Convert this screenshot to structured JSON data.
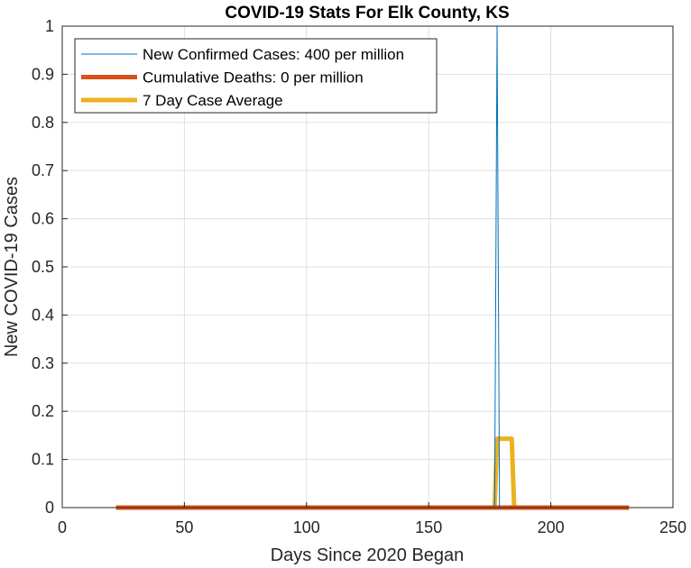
{
  "chart_data": {
    "type": "line",
    "title": "COVID-19 Stats For Elk County, KS",
    "xlabel": "Days Since 2020 Began",
    "ylabel": "New COVID-19 Cases",
    "xlim": [
      0,
      250
    ],
    "ylim": [
      0,
      1
    ],
    "xticks": [
      0,
      50,
      100,
      150,
      200,
      250
    ],
    "yticks": [
      0,
      0.1,
      0.2,
      0.3,
      0.4,
      0.5,
      0.6,
      0.7,
      0.8,
      0.9,
      1
    ],
    "xtick_labels": [
      "0",
      "50",
      "100",
      "150",
      "200",
      "250"
    ],
    "ytick_labels": [
      "0",
      "0.1",
      "0.2",
      "0.3",
      "0.4",
      "0.5",
      "0.6",
      "0.7",
      "0.8",
      "0.9",
      "1"
    ],
    "grid": true,
    "legend_position": "top-left",
    "series": [
      {
        "name": "New Confirmed Cases: 400 per million",
        "color": "#0072BD",
        "line_width": "thin",
        "x": [
          22,
          177,
          178,
          179,
          232
        ],
        "y": [
          0,
          0,
          1,
          0,
          0
        ]
      },
      {
        "name": "Cumulative Deaths: 0 per million",
        "color": "#D95319",
        "line_width": "thick",
        "x": [
          22,
          232
        ],
        "y": [
          0,
          0
        ]
      },
      {
        "name": "7 Day Case Average",
        "color": "#EDB120",
        "line_width": "thick",
        "x": [
          22,
          177,
          178,
          184,
          185,
          232
        ],
        "y": [
          0,
          0,
          0.143,
          0.143,
          0,
          0
        ]
      }
    ]
  }
}
